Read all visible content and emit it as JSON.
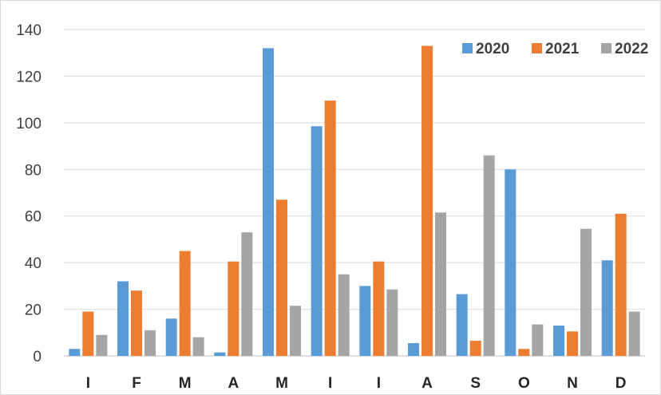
{
  "chart_data": {
    "type": "bar",
    "categories": [
      "I",
      "F",
      "M",
      "A",
      "M",
      "I",
      "I",
      "A",
      "S",
      "O",
      "N",
      "D"
    ],
    "series": [
      {
        "name": "2020",
        "color": "#5b9bd5",
        "values": [
          3,
          32,
          16,
          1.5,
          132,
          98.5,
          30,
          5.5,
          26.5,
          80,
          13,
          41
        ]
      },
      {
        "name": "2021",
        "color": "#ed7d31",
        "values": [
          19,
          28,
          45,
          40.5,
          67,
          109.5,
          40.5,
          133,
          6.5,
          3,
          10.5,
          61
        ]
      },
      {
        "name": "2022",
        "color": "#a5a5a5",
        "values": [
          9,
          11,
          8,
          53,
          21.5,
          35,
          28.5,
          61.5,
          86,
          13.5,
          54.5,
          19
        ]
      }
    ],
    "ylim": [
      0,
      140
    ],
    "yticks": [
      0,
      20,
      40,
      60,
      80,
      100,
      120,
      140
    ],
    "grid": true,
    "legend_position": "top-right",
    "title": "",
    "xlabel": "",
    "ylabel": ""
  }
}
